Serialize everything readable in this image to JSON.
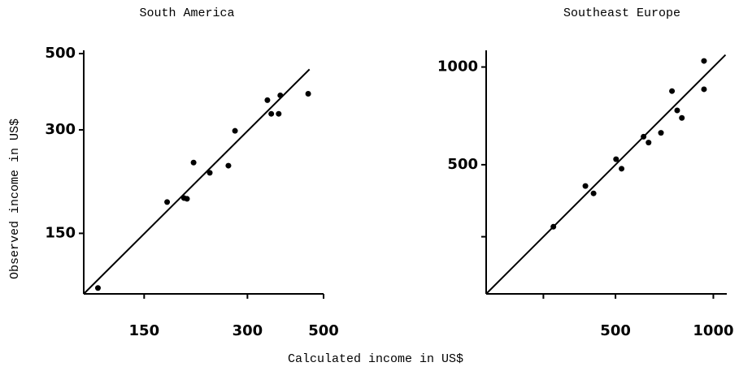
{
  "shared": {
    "xlabel": "Calculated income in US$",
    "ylabel": "Observed income in US$"
  },
  "chart_data": [
    {
      "type": "scatter",
      "title": "South America",
      "log_scale": true,
      "color": "#000000",
      "xlim": [
        100,
        500
      ],
      "ylim": [
        100,
        500
      ],
      "xticks": [
        150,
        300,
        500
      ],
      "yticks": [
        150,
        300,
        500
      ],
      "x": [
        110,
        175,
        196,
        200,
        209,
        233,
        264,
        276,
        343,
        352,
        370,
        374,
        451
      ],
      "values": [
        104,
        185,
        190,
        189,
        241,
        225,
        236,
        298,
        366,
        334,
        334,
        378,
        382
      ],
      "line": {
        "x": [
          100,
          455
        ],
        "y": [
          100,
          450
        ]
      }
    },
    {
      "type": "scatter",
      "title": "Southeast Europe",
      "log_scale": true,
      "color": "#000000",
      "xlim": [
        200,
        1100
      ],
      "ylim": [
        200,
        1100
      ],
      "xticks": [
        500,
        1000
      ],
      "yticks": [
        500,
        1000
      ],
      "minor_ticks": [
        300
      ],
      "x": [
        322,
        404,
        428,
        502,
        522,
        610,
        632,
        690,
        746,
        774,
        800,
        936,
        936
      ],
      "values": [
        322,
        430,
        408,
        520,
        486,
        610,
        585,
        627,
        843,
        735,
        697,
        1044,
        854
      ],
      "line": {
        "x": [
          200,
          1090
        ],
        "y": [
          200,
          1090
        ]
      }
    }
  ]
}
